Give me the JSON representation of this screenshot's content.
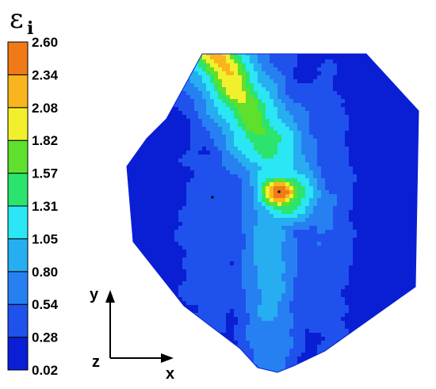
{
  "chart_data": {
    "type": "heatmap",
    "title": "",
    "legend": {
      "symbol": "ε",
      "subscript": "i",
      "placement": "left",
      "levels": [
        0.02,
        0.28,
        0.54,
        0.8,
        1.05,
        1.31,
        1.57,
        1.82,
        2.08,
        2.34,
        2.6
      ],
      "tick_labels": [
        "0.02",
        "0.28",
        "0.54",
        "0.80",
        "1.05",
        "1.31",
        "1.57",
        "1.82",
        "2.08",
        "2.34",
        "2.60"
      ],
      "colors": [
        "#0a1fd4",
        "#1f52ec",
        "#2780f2",
        "#26aef0",
        "#2be6f4",
        "#2be46d",
        "#5ee02d",
        "#f2f02c",
        "#f8b51d",
        "#f07a18",
        "#e8141d"
      ]
    },
    "axes_triad": {
      "x_label": "x",
      "y_label": "y",
      "z_label": "z"
    },
    "max_value_region": "upper-center",
    "min_value_region": "left and right edges"
  }
}
